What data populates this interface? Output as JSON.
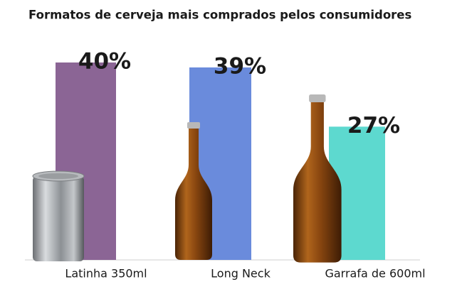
{
  "chart_data": {
    "type": "bar",
    "title": "Formatos de cerveja mais comprados pelos consumidores",
    "categories": [
      "Latinha 350ml",
      "Long Neck",
      "Garrafa de 600ml"
    ],
    "values": [
      40,
      39,
      27
    ],
    "value_labels": [
      "40%",
      "39%",
      "27%"
    ],
    "colors": [
      "#8b6595",
      "#6a8bdc",
      "#5dd9cf"
    ]
  }
}
